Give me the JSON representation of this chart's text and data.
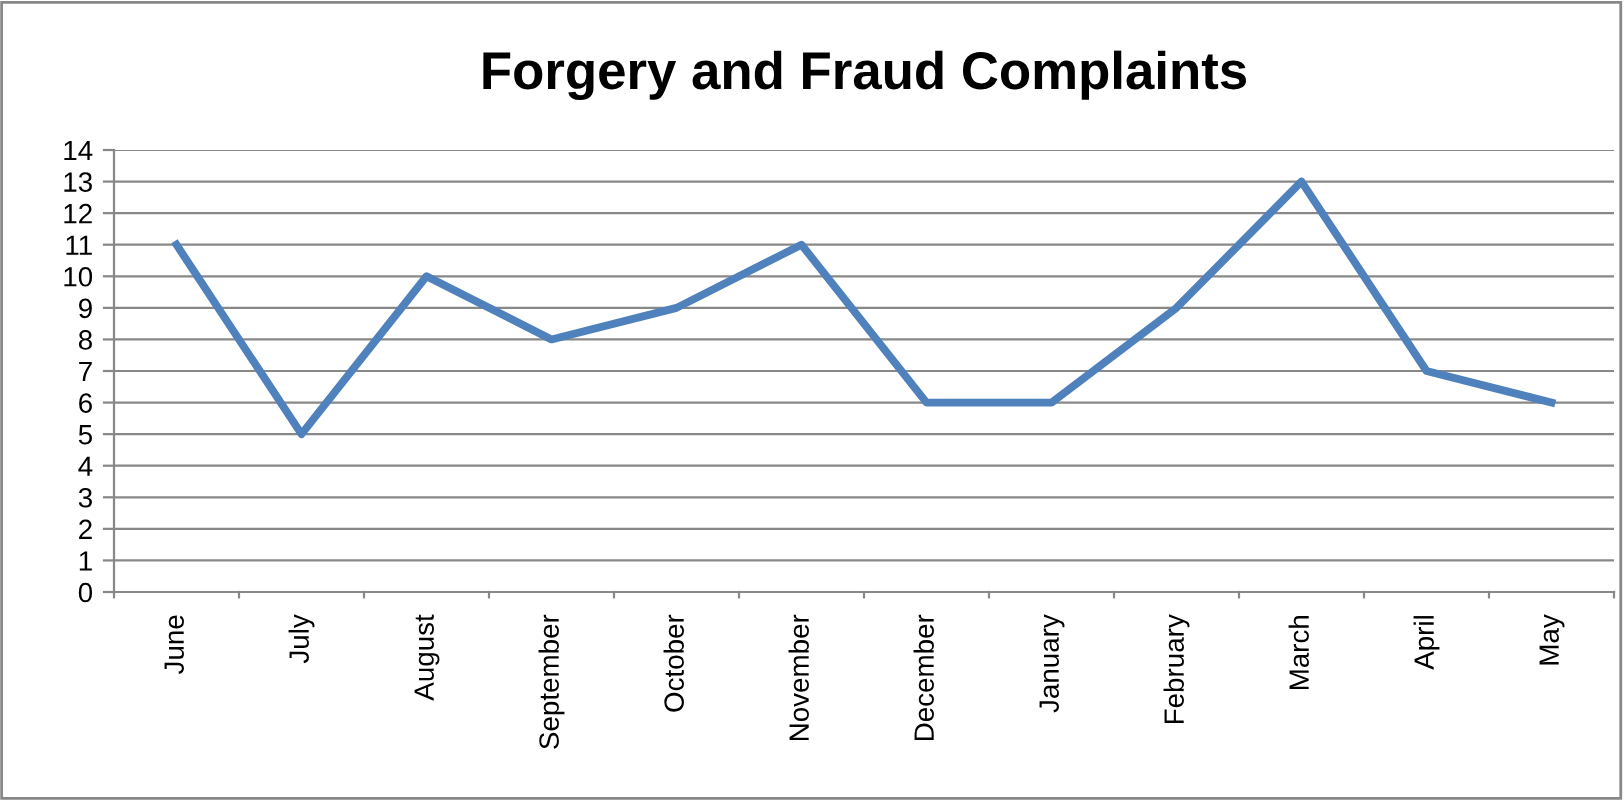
{
  "chart_data": {
    "type": "line",
    "title": "Forgery and Fraud Complaints",
    "categories": [
      "June",
      "July",
      "August",
      "September",
      "October",
      "November",
      "December",
      "January",
      "February",
      "March",
      "April",
      "May"
    ],
    "series": [
      {
        "color": "#4f81bd",
        "values": [
          11,
          5,
          10,
          8,
          9,
          11,
          6,
          6,
          9,
          13,
          7,
          6
        ]
      }
    ],
    "ylim": [
      0,
      14
    ],
    "yticks": [
      0,
      1,
      2,
      3,
      4,
      5,
      6,
      7,
      8,
      9,
      10,
      11,
      12,
      13,
      14
    ],
    "grid": "y",
    "marker": "none",
    "line_style": "solid"
  }
}
